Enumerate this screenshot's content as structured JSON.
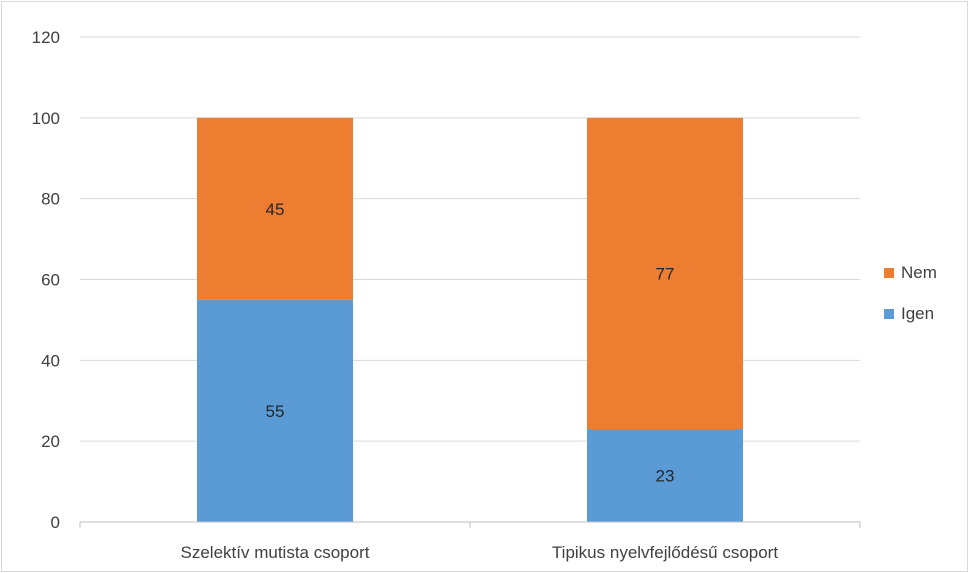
{
  "chart_data": {
    "type": "bar",
    "stacked": true,
    "categories": [
      "Szelektív mutista csoport",
      "Tipikus nyelvfejlődésű csoport"
    ],
    "series": [
      {
        "name": "Igen",
        "values": [
          55,
          23
        ],
        "color": "#5b9bd5"
      },
      {
        "name": "Nem",
        "values": [
          45,
          77
        ],
        "color": "#ed7d31"
      }
    ],
    "ylim": [
      0,
      120
    ],
    "yticks": [
      0,
      20,
      40,
      60,
      80,
      100,
      120
    ],
    "grid": true,
    "legend_position": "right",
    "legend_order": [
      "Nem",
      "Igen"
    ],
    "data_labels": true
  }
}
